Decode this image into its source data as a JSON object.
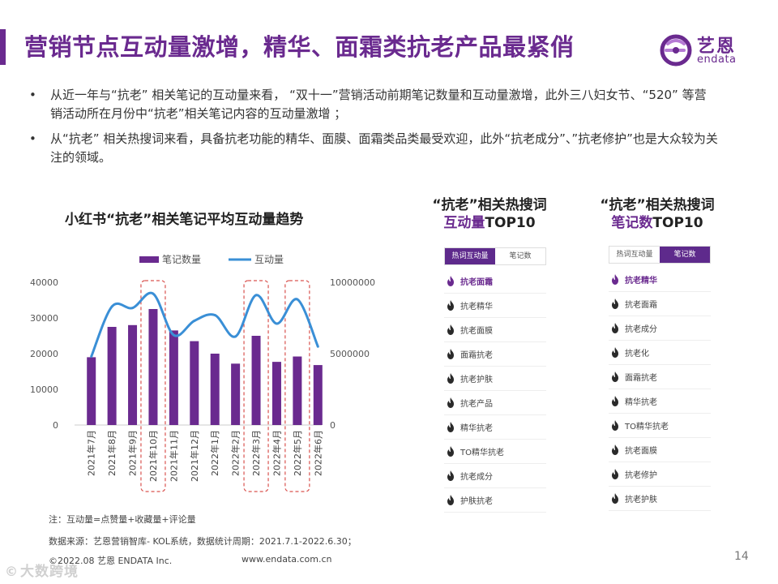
{
  "header": {
    "title": "营销节点互动量激增，精华、面霜类抗老产品最紧俏",
    "logo_cn": "艺恩",
    "logo_en": "endata"
  },
  "bullets": [
    "从近一年与“抗老”  相关笔记的互动量来看，  “双十一”营销活动前期笔记数量和互动量激增，此外三八妇女节、“520”  等营销活动所在月份中“抗老”相关笔记内容的互动量激增  ；",
    "从“抗老”  相关热搜词来看，具备抗老功能的精华、面膜、面霜类品类最受欢迎，此外“抗老成分”、”抗老修护”也是大众较为关注的领域。"
  ],
  "bullet_symbol": "•",
  "chart_data": {
    "type": "bar",
    "title": "小红书“抗老”相关笔记平均互动量趋势",
    "categories": [
      "2021年7月",
      "2021年8月",
      "2021年9月",
      "2021年10月",
      "2021年11月",
      "2021年12月",
      "2022年1月",
      "2022年2月",
      "2022年3月",
      "2022年4月",
      "2022年5月",
      "2022年6月"
    ],
    "series": [
      {
        "name": "笔记数量",
        "type": "bar",
        "axis": "left",
        "color": "#6a2a8f",
        "values": [
          19000,
          27500,
          28000,
          32500,
          26500,
          23500,
          20000,
          17200,
          25000,
          17700,
          19200,
          16800
        ]
      },
      {
        "name": "互动量",
        "type": "line",
        "axis": "right",
        "color": "#3a8fd6",
        "values": [
          4800000,
          8300000,
          8200000,
          9200000,
          6300000,
          7300000,
          7700000,
          6200000,
          9100000,
          7100000,
          8800000,
          5500000
        ]
      }
    ],
    "ylim_left": [
      0,
      40000
    ],
    "yticks_left": [
      "0",
      "10000",
      "20000",
      "30000",
      "40000"
    ],
    "ylim_right": [
      0,
      10000000
    ],
    "yticks_right": [
      "0",
      "5000000",
      "10000000"
    ],
    "highlighted_categories": [
      "2021年10月",
      "2022年3月",
      "2022年5月"
    ],
    "legend_position": "top"
  },
  "note": "注：互动量=点赞量+收藏量+评论量",
  "source": "数据来源：艺恩营销智库- KOL系统，数据统计周期：2021.7.1-2022.6.30；",
  "footer": {
    "copyright": "©2022.08 艺恩 ENDATA Inc.",
    "website": "www.endata.com.cn",
    "page_number": "14",
    "watermark": "大数跨境"
  },
  "panels": [
    {
      "head_line1": "“抗老”相关热搜词",
      "head_line2_hl": "互动量",
      "head_line2_rest": "TOP10",
      "tab_interaction": "热词互动量",
      "tab_notes": "笔记数",
      "active_tab": "interaction",
      "items": [
        "抗老面霜",
        "抗老精华",
        "抗老面膜",
        "面霜抗老",
        "抗老护肤",
        "抗老产品",
        "精华抗老",
        "TO精华抗老",
        "抗老成分",
        "护肤抗老"
      ]
    },
    {
      "head_line1": "“抗老”相关热搜词",
      "head_line2_hl": "笔记数",
      "head_line2_rest": "TOP10",
      "tab_interaction": "热词互动量",
      "tab_notes": "笔记数",
      "active_tab": "notes",
      "items": [
        "抗老精华",
        "抗老面霜",
        "抗老成分",
        "抗老化",
        "面霜抗老",
        "精华抗老",
        "TO精华抗老",
        "抗老面膜",
        "抗老修护",
        "抗老护肤"
      ]
    }
  ],
  "colors": {
    "brand": "#6a2a8f",
    "line": "#3a8fd6",
    "highlight_box": "#d9534f"
  },
  "icons": {
    "flame": "flame-icon",
    "logo": "endata-logo-icon"
  }
}
